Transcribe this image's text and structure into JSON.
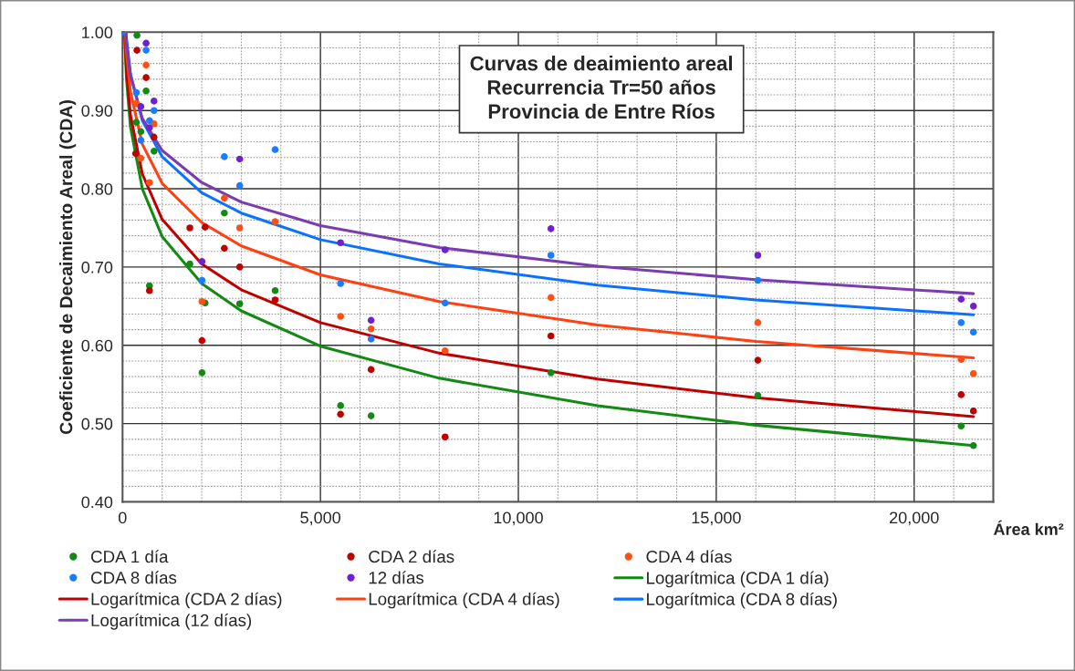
{
  "chart_data": {
    "type": "scatter",
    "title": "Curvas de deaimiento areal\nRecurrencia Tr=50 años\nProvincia de Entre Ríos",
    "xlabel": "Área km²",
    "ylabel": "Coeficiente de Decaimiento Areal (CDA)",
    "xlim": [
      0,
      22000
    ],
    "ylim": [
      0.4,
      1.0
    ],
    "xticks": [
      0,
      {
        "value": 5000,
        "label": "5,000"
      },
      {
        "value": 10000,
        "label": "10,000"
      },
      {
        "value": 15000,
        "label": "15,000"
      },
      {
        "value": 20000,
        "label": "20,000"
      }
    ],
    "yticks": [
      {
        "value": 0.4,
        "label": "0.40"
      },
      {
        "value": 0.5,
        "label": "0.50"
      },
      {
        "value": 0.6,
        "label": "0.60"
      },
      {
        "value": 0.7,
        "label": "0.70"
      },
      {
        "value": 0.8,
        "label": "0.80"
      },
      {
        "value": 0.9,
        "label": "0.90"
      },
      {
        "value": 1.0,
        "label": "1.00"
      }
    ],
    "grid": true,
    "legend": "bottom",
    "series": [
      {
        "name": "CDA 1 día",
        "marker": "circle",
        "color": "#138a13",
        "x": [
          364,
          348,
          463,
          595,
          680,
          795,
          1700,
          2008,
          2086,
          2572,
          2960,
          3855,
          5508,
          6280,
          10823,
          16051,
          21188,
          21498
        ],
        "values": [
          0.996,
          0.885,
          0.873,
          0.925,
          0.676,
          0.848,
          0.704,
          0.565,
          0.654,
          0.769,
          0.653,
          0.67,
          0.523,
          0.51,
          0.565,
          0.536,
          0.497,
          0.472
        ]
      },
      {
        "name": "CDA 2 días",
        "marker": "circle",
        "color": "#c00000",
        "x": [
          364,
          332,
          595,
          795,
          680,
          1700,
          2086,
          2008,
          2572,
          2960,
          3855,
          5508,
          6280,
          8150,
          10823,
          16051,
          21188,
          21498
        ],
        "values": [
          0.977,
          0.845,
          0.942,
          0.866,
          0.67,
          0.75,
          0.751,
          0.606,
          0.724,
          0.7,
          0.658,
          0.512,
          0.569,
          0.483,
          0.612,
          0.581,
          0.537,
          0.516
        ]
      },
      {
        "name": "CDA 4 días",
        "marker": "circle",
        "color": "#ff5014",
        "x": [
          348,
          595,
          795,
          463,
          680,
          2008,
          2572,
          2960,
          3855,
          5508,
          6280,
          8150,
          10823,
          16051,
          21188,
          21498
        ],
        "values": [
          0.909,
          0.958,
          0.883,
          0.839,
          0.808,
          0.656,
          0.788,
          0.75,
          0.758,
          0.637,
          0.621,
          0.593,
          0.661,
          0.629,
          0.582,
          0.564
        ]
      },
      {
        "name": "CDA 8 días",
        "marker": "circle",
        "color": "#1a7cff",
        "x": [
          0,
          595,
          348,
          795,
          680,
          463,
          2572,
          2960,
          3855,
          2008,
          5508,
          6280,
          8150,
          10823,
          16051,
          21188,
          21498
        ],
        "values": [
          1.0,
          0.977,
          0.923,
          0.9,
          0.887,
          0.862,
          0.841,
          0.804,
          0.85,
          0.683,
          0.679,
          0.608,
          0.654,
          0.715,
          0.683,
          0.629,
          0.617
        ]
      },
      {
        "name": "12 días",
        "marker": "circle",
        "color": "#7020d0",
        "x": [
          595,
          795,
          463,
          680,
          2960,
          2008,
          5508,
          6280,
          8150,
          10823,
          16051,
          21188,
          21498
        ],
        "values": [
          0.986,
          0.912,
          0.905,
          0.878,
          0.838,
          0.707,
          0.731,
          0.632,
          0.722,
          0.749,
          0.715,
          0.659,
          0.65
        ]
      },
      {
        "name": "Logarítmica (CDA 1 día)",
        "type": "line",
        "color": "#138a13",
        "x": [
          50,
          100,
          200,
          500,
          1000,
          2000,
          3000,
          5000,
          8000,
          12000,
          16000,
          21500
        ],
        "values": [
          1.0,
          0.94,
          0.879,
          0.8,
          0.739,
          0.679,
          0.644,
          0.599,
          0.558,
          0.523,
          0.498,
          0.472
        ]
      },
      {
        "name": "Logarítmica (CDA 2 días)",
        "type": "line",
        "color": "#c00000",
        "x": [
          55,
          100,
          200,
          500,
          1000,
          2000,
          3000,
          5000,
          8000,
          12000,
          16000,
          21500
        ],
        "values": [
          1.0,
          0.951,
          0.894,
          0.819,
          0.761,
          0.704,
          0.671,
          0.629,
          0.59,
          0.557,
          0.533,
          0.509
        ]
      },
      {
        "name": "Logarítmica (CDA 4 días)",
        "type": "line",
        "color": "#ff4010",
        "x": [
          70,
          100,
          200,
          500,
          1000,
          2000,
          3000,
          5000,
          8000,
          12000,
          16000,
          21500
        ],
        "values": [
          1.0,
          0.974,
          0.924,
          0.857,
          0.807,
          0.757,
          0.727,
          0.69,
          0.656,
          0.626,
          0.605,
          0.584
        ]
      },
      {
        "name": "Logarítmica (CDA 8 días)",
        "type": "line",
        "color": "#0a72ff",
        "x": [
          89,
          100,
          200,
          500,
          1000,
          2000,
          3000,
          5000,
          8000,
          12000,
          16000,
          21500
        ],
        "values": [
          1.0,
          0.992,
          0.947,
          0.887,
          0.841,
          0.795,
          0.769,
          0.735,
          0.704,
          0.677,
          0.658,
          0.639
        ]
      },
      {
        "name": "Logarítmica (12 días)",
        "type": "line",
        "color": "#7a3cb0",
        "x": [
          79,
          100,
          200,
          500,
          1000,
          2000,
          3000,
          5000,
          8000,
          12000,
          16000,
          21500
        ],
        "values": [
          1.0,
          0.986,
          0.945,
          0.89,
          0.849,
          0.808,
          0.783,
          0.753,
          0.725,
          0.701,
          0.684,
          0.666
        ]
      }
    ]
  }
}
